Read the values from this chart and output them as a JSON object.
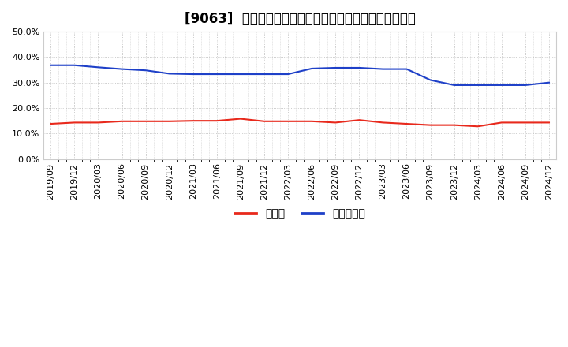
{
  "title": "[9063]  現預金、有利子負債の総資産に対する比率の推移",
  "x_labels": [
    "2019/09",
    "2019/12",
    "2020/03",
    "2020/06",
    "2020/09",
    "2020/12",
    "2021/03",
    "2021/06",
    "2021/09",
    "2021/12",
    "2022/03",
    "2022/06",
    "2022/09",
    "2022/12",
    "2023/03",
    "2023/06",
    "2023/09",
    "2023/12",
    "2024/03",
    "2024/06",
    "2024/09",
    "2024/12"
  ],
  "cash": [
    0.138,
    0.143,
    0.143,
    0.148,
    0.148,
    0.148,
    0.15,
    0.15,
    0.158,
    0.148,
    0.148,
    0.148,
    0.143,
    0.153,
    0.143,
    0.138,
    0.133,
    0.133,
    0.128,
    0.143,
    0.143,
    0.143
  ],
  "debt": [
    0.368,
    0.368,
    0.36,
    0.353,
    0.348,
    0.335,
    0.333,
    0.333,
    0.333,
    0.333,
    0.333,
    0.355,
    0.358,
    0.358,
    0.353,
    0.353,
    0.31,
    0.29,
    0.29,
    0.29,
    0.29,
    0.3
  ],
  "cash_color": "#e8291c",
  "debt_color": "#1e40c8",
  "background_color": "#ffffff",
  "grid_color": "#bbbbbb",
  "ylim": [
    0.0,
    0.5
  ],
  "yticks": [
    0.0,
    0.1,
    0.2,
    0.3,
    0.4,
    0.5
  ],
  "legend_cash": "現預金",
  "legend_debt": "有利子負債",
  "title_fontsize": 12,
  "axis_fontsize": 8,
  "legend_fontsize": 10
}
